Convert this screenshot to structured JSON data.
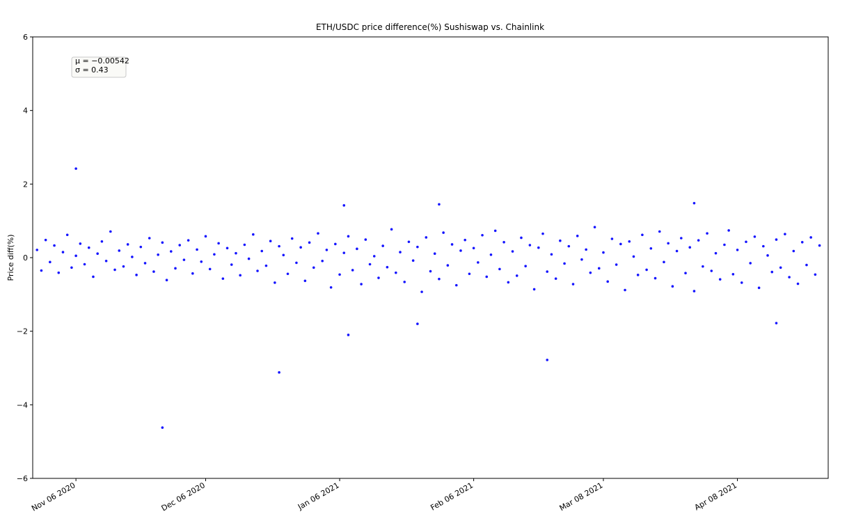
{
  "chart_data": {
    "type": "scatter",
    "title": "ETH/USDC price difference(%) Sushiswap vs. Chainlink",
    "y_label": "Price diff(%)",
    "annotation": [
      "μ = −0.00542",
      "σ = 0.43"
    ],
    "xlim": [
      "2020-10-27",
      "2021-04-29"
    ],
    "xticks": [
      {
        "value": "2020-11-06",
        "label": "Nov 06 2020"
      },
      {
        "value": "2020-12-06",
        "label": "Dec 06 2020"
      },
      {
        "value": "2021-01-06",
        "label": "Jan 06 2021"
      },
      {
        "value": "2021-02-06",
        "label": "Feb 06 2021"
      },
      {
        "value": "2021-03-08",
        "label": "Mar 08 2021"
      },
      {
        "value": "2021-04-08",
        "label": "Apr 08 2021"
      }
    ],
    "ylim": [
      -6,
      6
    ],
    "yticks": [
      {
        "value": -6,
        "label": "−6"
      },
      {
        "value": -4,
        "label": "−4"
      },
      {
        "value": -2,
        "label": "−2"
      },
      0,
      2,
      4,
      6
    ],
    "color": "#1414ff",
    "x": [
      "2020-10-28",
      "2020-10-29",
      "2020-10-30",
      "2020-10-31",
      "2020-11-01",
      "2020-11-02",
      "2020-11-03",
      "2020-11-04",
      "2020-11-05",
      "2020-11-06",
      "2020-11-07",
      "2020-11-08",
      "2020-11-09",
      "2020-11-10",
      "2020-11-11",
      "2020-11-12",
      "2020-11-13",
      "2020-11-14",
      "2020-11-15",
      "2020-11-16",
      "2020-11-17",
      "2020-11-18",
      "2020-11-19",
      "2020-11-20",
      "2020-11-21",
      "2020-11-22",
      "2020-11-23",
      "2020-11-24",
      "2020-11-25",
      "2020-11-26",
      "2020-11-27",
      "2020-11-28",
      "2020-11-29",
      "2020-11-30",
      "2020-12-01",
      "2020-12-02",
      "2020-12-03",
      "2020-12-04",
      "2020-12-05",
      "2020-12-06",
      "2020-12-07",
      "2020-12-08",
      "2020-12-09",
      "2020-12-10",
      "2020-12-11",
      "2020-12-12",
      "2020-12-13",
      "2020-12-14",
      "2020-12-15",
      "2020-12-16",
      "2020-12-17",
      "2020-12-18",
      "2020-12-19",
      "2020-12-20",
      "2020-12-21",
      "2020-12-22",
      "2020-12-23",
      "2020-12-24",
      "2020-12-25",
      "2020-12-26",
      "2020-12-27",
      "2020-12-28",
      "2020-12-29",
      "2020-12-30",
      "2020-12-31",
      "2021-01-01",
      "2021-01-02",
      "2021-01-03",
      "2021-01-04",
      "2021-01-05",
      "2021-01-06",
      "2021-01-07",
      "2021-01-08",
      "2021-01-09",
      "2021-01-10",
      "2021-01-11",
      "2021-01-12",
      "2021-01-13",
      "2021-01-14",
      "2021-01-15",
      "2021-01-16",
      "2021-01-17",
      "2021-01-18",
      "2021-01-19",
      "2021-01-20",
      "2021-01-21",
      "2021-01-22",
      "2021-01-23",
      "2021-01-24",
      "2021-01-25",
      "2021-01-26",
      "2021-01-27",
      "2021-01-28",
      "2021-01-29",
      "2021-01-30",
      "2021-01-31",
      "2021-02-01",
      "2021-02-02",
      "2021-02-03",
      "2021-02-04",
      "2021-02-05",
      "2021-02-06",
      "2021-02-07",
      "2021-02-08",
      "2021-02-09",
      "2021-02-10",
      "2021-02-11",
      "2021-02-12",
      "2021-02-13",
      "2021-02-14",
      "2021-02-15",
      "2021-02-16",
      "2021-02-17",
      "2021-02-18",
      "2021-02-19",
      "2021-02-20",
      "2021-02-21",
      "2021-02-22",
      "2021-02-23",
      "2021-02-24",
      "2021-02-25",
      "2021-02-26",
      "2021-02-27",
      "2021-02-28",
      "2021-03-01",
      "2021-03-02",
      "2021-03-03",
      "2021-03-04",
      "2021-03-05",
      "2021-03-06",
      "2021-03-07",
      "2021-03-08",
      "2021-03-09",
      "2021-03-10",
      "2021-03-11",
      "2021-03-12",
      "2021-03-13",
      "2021-03-14",
      "2021-03-15",
      "2021-03-16",
      "2021-03-17",
      "2021-03-18",
      "2021-03-19",
      "2021-03-20",
      "2021-03-21",
      "2021-03-22",
      "2021-03-23",
      "2021-03-24",
      "2021-03-25",
      "2021-03-26",
      "2021-03-27",
      "2021-03-28",
      "2021-03-29",
      "2021-03-30",
      "2021-03-31",
      "2021-04-01",
      "2021-04-02",
      "2021-04-03",
      "2021-04-04",
      "2021-04-05",
      "2021-04-06",
      "2021-04-07",
      "2021-04-08",
      "2021-04-09",
      "2021-04-10",
      "2021-04-11",
      "2021-04-12",
      "2021-04-13",
      "2021-04-14",
      "2021-04-15",
      "2021-04-16",
      "2021-04-17",
      "2021-04-18",
      "2021-04-19",
      "2021-04-20",
      "2021-04-21",
      "2021-04-22",
      "2021-04-23",
      "2021-04-24",
      "2021-04-25",
      "2021-04-26",
      "2021-04-27",
      "2020-11-06",
      "2020-11-26",
      "2020-12-23",
      "2021-01-07",
      "2021-01-08",
      "2021-01-24",
      "2021-01-29",
      "2021-02-23",
      "2021-03-29",
      "2021-04-17"
    ],
    "values": [
      0.21,
      -0.35,
      0.48,
      -0.12,
      0.33,
      -0.41,
      0.15,
      0.62,
      -0.27,
      0.05,
      0.38,
      -0.18,
      0.27,
      -0.52,
      0.11,
      0.44,
      -0.09,
      0.71,
      -0.33,
      0.19,
      -0.24,
      0.36,
      0.02,
      -0.47,
      0.29,
      -0.15,
      0.53,
      -0.38,
      0.08,
      0.41,
      -0.61,
      0.17,
      -0.29,
      0.34,
      -0.06,
      0.47,
      -0.43,
      0.22,
      -0.11,
      0.58,
      -0.31,
      0.09,
      0.39,
      -0.57,
      0.26,
      -0.19,
      0.12,
      -0.48,
      0.35,
      -0.03,
      0.63,
      -0.36,
      0.18,
      -0.22,
      0.45,
      -0.68,
      0.31,
      0.07,
      -0.44,
      0.52,
      -0.14,
      0.28,
      -0.63,
      0.41,
      -0.27,
      0.66,
      -0.09,
      0.21,
      -0.81,
      0.37,
      -0.46,
      0.13,
      0.58,
      -0.34,
      0.24,
      -0.72,
      0.49,
      -0.18,
      0.04,
      -0.55,
      0.32,
      -0.26,
      0.77,
      -0.41,
      0.15,
      -0.66,
      0.43,
      -0.08,
      0.29,
      -0.93,
      0.55,
      -0.37,
      0.11,
      -0.58,
      0.68,
      -0.21,
      0.36,
      -0.75,
      0.19,
      0.48,
      -0.44,
      0.26,
      -0.13,
      0.61,
      -0.52,
      0.08,
      0.73,
      -0.31,
      0.42,
      -0.67,
      0.17,
      -0.49,
      0.54,
      -0.23,
      0.34,
      -0.86,
      0.27,
      0.65,
      -0.38,
      0.09,
      -0.57,
      0.46,
      -0.16,
      0.31,
      -0.72,
      0.59,
      -0.05,
      0.22,
      -0.41,
      0.83,
      -0.29,
      0.14,
      -0.65,
      0.51,
      -0.19,
      0.37,
      -0.88,
      0.44,
      0.03,
      -0.47,
      0.62,
      -0.33,
      0.25,
      -0.56,
      0.71,
      -0.12,
      0.39,
      -0.78,
      0.18,
      0.53,
      -0.42,
      0.28,
      -0.91,
      0.47,
      -0.24,
      0.66,
      -0.36,
      0.12,
      -0.59,
      0.35,
      0.74,
      -0.45,
      0.21,
      -0.68,
      0.43,
      -0.15,
      0.57,
      -0.82,
      0.31,
      0.06,
      -0.39,
      0.49,
      -0.27,
      0.64,
      -0.53,
      0.18,
      -0.71,
      0.42,
      -0.2,
      0.55,
      -0.46,
      0.33,
      2.42,
      -4.62,
      -3.12,
      1.42,
      -2.1,
      -1.8,
      1.45,
      -2.78,
      1.48,
      -1.78
    ]
  }
}
